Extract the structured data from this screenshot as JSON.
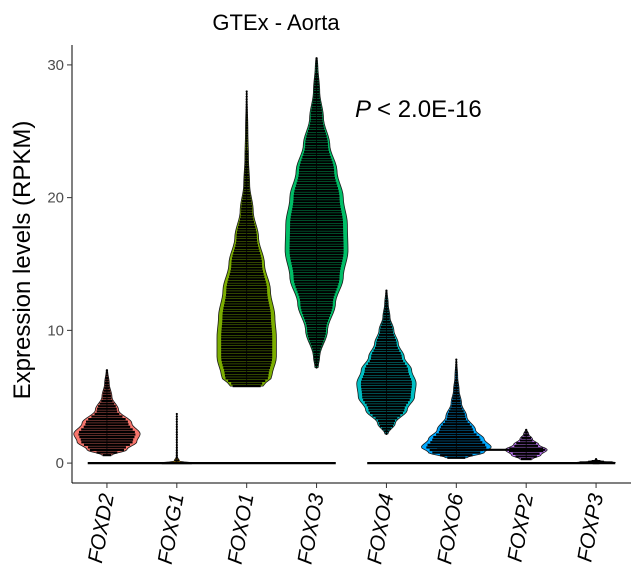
{
  "chart_data": {
    "type": "violin",
    "title": "GTEx - Aorta",
    "ylabel": "Expression  levels (RPKM)",
    "xlabel": "",
    "ylim": [
      -1.5,
      31.5
    ],
    "yticks": [
      0,
      10,
      20,
      30
    ],
    "annotation": {
      "p_symbol": "P",
      "p_rest": "< 2.0E-16"
    },
    "categories": [
      "FOXD2",
      "FOXG1",
      "FOXO1",
      "FOXO3",
      "FOXO4",
      "FOXO6",
      "FOXP2",
      "FOXP3"
    ],
    "series": [
      {
        "gene": "FOXD2",
        "color": "#F8766D",
        "min": 0.6,
        "max": 7.0,
        "mode": 2.2,
        "width": 0.95,
        "shape": [
          [
            0.6,
            0.15
          ],
          [
            1.0,
            0.6
          ],
          [
            1.6,
            0.9
          ],
          [
            2.2,
            1.0
          ],
          [
            3.0,
            0.75
          ],
          [
            4.0,
            0.35
          ],
          [
            5.0,
            0.15
          ],
          [
            6.0,
            0.07
          ],
          [
            7.0,
            0.02
          ]
        ]
      },
      {
        "gene": "FOXG1",
        "color": "#CD9600",
        "min": 0.0,
        "max": 3.7,
        "mode": 0.0,
        "width": 0.5,
        "shape": [
          [
            0.0,
            1.0
          ],
          [
            0.15,
            0.15
          ],
          [
            0.5,
            0.03
          ],
          [
            1.5,
            0.02
          ],
          [
            2.5,
            0.02
          ],
          [
            3.7,
            0.01
          ]
        ]
      },
      {
        "gene": "FOXO1",
        "color": "#7CAE00",
        "min": 5.8,
        "max": 28.0,
        "mode": 9.5,
        "width": 0.85,
        "shape": [
          [
            5.8,
            0.55
          ],
          [
            6.5,
            0.85
          ],
          [
            8.0,
            1.0
          ],
          [
            9.5,
            1.0
          ],
          [
            11.0,
            0.95
          ],
          [
            13.0,
            0.8
          ],
          [
            15.0,
            0.6
          ],
          [
            17.0,
            0.4
          ],
          [
            19.0,
            0.22
          ],
          [
            21.0,
            0.1
          ],
          [
            23.0,
            0.06
          ],
          [
            25.0,
            0.04
          ],
          [
            28.0,
            0.01
          ]
        ]
      },
      {
        "gene": "FOXO3",
        "color": "#00BE67",
        "min": 7.2,
        "max": 30.5,
        "mode": 17.0,
        "width": 0.9,
        "shape": [
          [
            7.2,
            0.05
          ],
          [
            8.0,
            0.1
          ],
          [
            10.0,
            0.35
          ],
          [
            12.0,
            0.6
          ],
          [
            14.0,
            0.85
          ],
          [
            16.0,
            1.0
          ],
          [
            18.0,
            0.98
          ],
          [
            20.0,
            0.85
          ],
          [
            22.0,
            0.65
          ],
          [
            24.0,
            0.42
          ],
          [
            26.0,
            0.22
          ],
          [
            28.0,
            0.1
          ],
          [
            30.0,
            0.04
          ],
          [
            30.5,
            0.02
          ]
        ]
      },
      {
        "gene": "FOXO4",
        "color": "#00BFC4",
        "min": 2.2,
        "max": 13.0,
        "mode": 6.0,
        "width": 0.85,
        "shape": [
          [
            2.2,
            0.05
          ],
          [
            3.0,
            0.3
          ],
          [
            4.0,
            0.7
          ],
          [
            5.0,
            0.95
          ],
          [
            6.0,
            1.0
          ],
          [
            7.0,
            0.85
          ],
          [
            8.0,
            0.6
          ],
          [
            9.0,
            0.4
          ],
          [
            10.0,
            0.25
          ],
          [
            11.0,
            0.12
          ],
          [
            12.0,
            0.06
          ],
          [
            13.0,
            0.02
          ]
        ]
      },
      {
        "gene": "FOXO6",
        "color": "#00A9FF",
        "min": 0.4,
        "max": 7.8,
        "mode": 1.2,
        "width": 1.0,
        "shape": [
          [
            0.4,
            0.3
          ],
          [
            0.8,
            0.8
          ],
          [
            1.2,
            1.0
          ],
          [
            1.8,
            0.8
          ],
          [
            2.5,
            0.55
          ],
          [
            3.5,
            0.3
          ],
          [
            4.5,
            0.15
          ],
          [
            5.5,
            0.08
          ],
          [
            6.5,
            0.04
          ],
          [
            7.8,
            0.01
          ]
        ]
      },
      {
        "gene": "FOXP2",
        "color": "#C77CFF",
        "min": 0.3,
        "max": 2.5,
        "mode": 1.0,
        "width": 0.6,
        "shape": [
          [
            0.3,
            0.3
          ],
          [
            0.6,
            0.7
          ],
          [
            1.0,
            1.0
          ],
          [
            1.4,
            0.6
          ],
          [
            1.8,
            0.3
          ],
          [
            2.2,
            0.12
          ],
          [
            2.5,
            0.03
          ]
        ]
      },
      {
        "gene": "FOXP3",
        "color": "#FF61CC",
        "min": 0.0,
        "max": 0.3,
        "mode": 0.05,
        "width": 0.55,
        "shape": [
          [
            0.0,
            0.2
          ],
          [
            0.05,
            1.0
          ],
          [
            0.12,
            0.35
          ],
          [
            0.2,
            0.08
          ],
          [
            0.3,
            0.02
          ]
        ]
      }
    ],
    "zero_lines": [
      {
        "from": 0,
        "to": 3,
        "value": 0.0
      },
      {
        "from": 4,
        "to": 7,
        "value": 0.0
      },
      {
        "from": 5,
        "to": 6,
        "value": 1.0
      }
    ]
  }
}
